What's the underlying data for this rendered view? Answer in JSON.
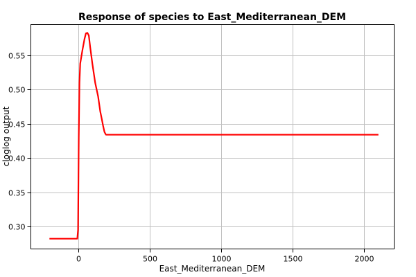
{
  "chart_data": {
    "type": "line",
    "title": "Response of species to East_Mediterranean_DEM",
    "xlabel": "East_Mediterranean_DEM",
    "ylabel": "cloglog output",
    "xlim": [
      -330,
      2210
    ],
    "ylim": [
      0.267,
      0.595
    ],
    "xticks": [
      0,
      500,
      1000,
      1500,
      2000
    ],
    "yticks": [
      0.3,
      0.35,
      0.4,
      0.45,
      0.5,
      0.55
    ],
    "ytick_labels": [
      "0.30",
      "0.35",
      "0.40",
      "0.45",
      "0.50",
      "0.55"
    ],
    "grid": true,
    "series": [
      {
        "color": "#ff0000",
        "x": [
          -200,
          -100,
          -5,
          0,
          5,
          10,
          15,
          30,
          45,
          55,
          65,
          75,
          85,
          100,
          120,
          140,
          155,
          165,
          175,
          185,
          195,
          205,
          250,
          500,
          1000,
          1500,
          2000,
          2100
        ],
        "y": [
          0.282,
          0.282,
          0.282,
          0.295,
          0.43,
          0.51,
          0.538,
          0.557,
          0.574,
          0.582,
          0.583,
          0.579,
          0.562,
          0.538,
          0.51,
          0.49,
          0.468,
          0.458,
          0.447,
          0.438,
          0.434,
          0.434,
          0.434,
          0.434,
          0.434,
          0.434,
          0.434,
          0.434
        ]
      }
    ]
  }
}
